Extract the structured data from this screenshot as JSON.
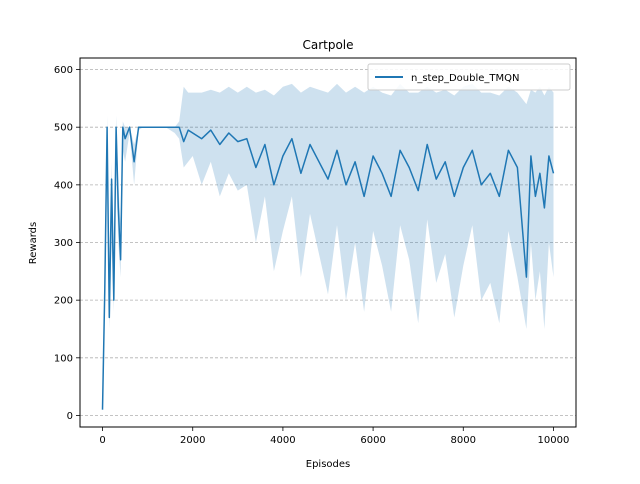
{
  "chart_data": {
    "type": "line",
    "title": "Cartpole",
    "xlabel": "Episodes",
    "ylabel": "Rewards",
    "xlim": [
      -500,
      10500
    ],
    "ylim": [
      -20,
      620
    ],
    "xticks": [
      0,
      2000,
      4000,
      6000,
      8000,
      10000
    ],
    "yticks": [
      0,
      100,
      200,
      300,
      400,
      500,
      600
    ],
    "grid": "horizontal-dashed",
    "legend_position": "top-right",
    "colors": {
      "line": "#1f77b4",
      "band": "#1f77b4",
      "grid": "#b0b0b0"
    },
    "series": [
      {
        "name": "n_step_Double_TMQN",
        "x": [
          0,
          50,
          100,
          150,
          200,
          250,
          300,
          350,
          400,
          450,
          500,
          600,
          700,
          800,
          900,
          1000,
          1200,
          1400,
          1600,
          1700,
          1800,
          1900,
          2000,
          2200,
          2400,
          2600,
          2800,
          3000,
          3200,
          3400,
          3600,
          3800,
          4000,
          4200,
          4400,
          4600,
          4800,
          5000,
          5200,
          5400,
          5600,
          5800,
          6000,
          6200,
          6400,
          6600,
          6800,
          7000,
          7200,
          7400,
          7600,
          7800,
          8000,
          8200,
          8400,
          8600,
          8800,
          9000,
          9200,
          9400,
          9500,
          9600,
          9700,
          9800,
          9900,
          10000
        ],
        "y": [
          10,
          220,
          500,
          170,
          410,
          200,
          500,
          360,
          270,
          500,
          480,
          500,
          440,
          500,
          500,
          500,
          500,
          500,
          500,
          500,
          475,
          495,
          490,
          480,
          495,
          470,
          490,
          475,
          480,
          430,
          470,
          400,
          450,
          480,
          420,
          470,
          440,
          410,
          460,
          400,
          440,
          380,
          450,
          420,
          380,
          460,
          430,
          390,
          470,
          410,
          440,
          380,
          430,
          460,
          400,
          420,
          380,
          460,
          430,
          240,
          450,
          380,
          420,
          360,
          450,
          420
        ],
        "upper": [
          10,
          230,
          520,
          200,
          440,
          260,
          520,
          400,
          330,
          510,
          500,
          500,
          470,
          500,
          500,
          500,
          500,
          500,
          500,
          510,
          570,
          560,
          560,
          560,
          565,
          560,
          570,
          560,
          570,
          560,
          565,
          555,
          570,
          575,
          560,
          570,
          565,
          560,
          575,
          560,
          570,
          560,
          570,
          560,
          555,
          575,
          560,
          560,
          570,
          560,
          565,
          555,
          570,
          575,
          560,
          560,
          555,
          570,
          560,
          540,
          565,
          560,
          570,
          555,
          570,
          560
        ],
        "lower": [
          10,
          200,
          450,
          150,
          300,
          180,
          420,
          300,
          240,
          460,
          440,
          490,
          400,
          495,
          500,
          500,
          500,
          500,
          490,
          480,
          430,
          440,
          450,
          400,
          440,
          380,
          420,
          390,
          400,
          300,
          380,
          250,
          320,
          380,
          240,
          350,
          280,
          210,
          330,
          200,
          300,
          180,
          320,
          260,
          180,
          330,
          270,
          160,
          340,
          230,
          280,
          170,
          260,
          330,
          200,
          230,
          160,
          320,
          240,
          150,
          300,
          200,
          250,
          150,
          300,
          240
        ]
      }
    ]
  }
}
